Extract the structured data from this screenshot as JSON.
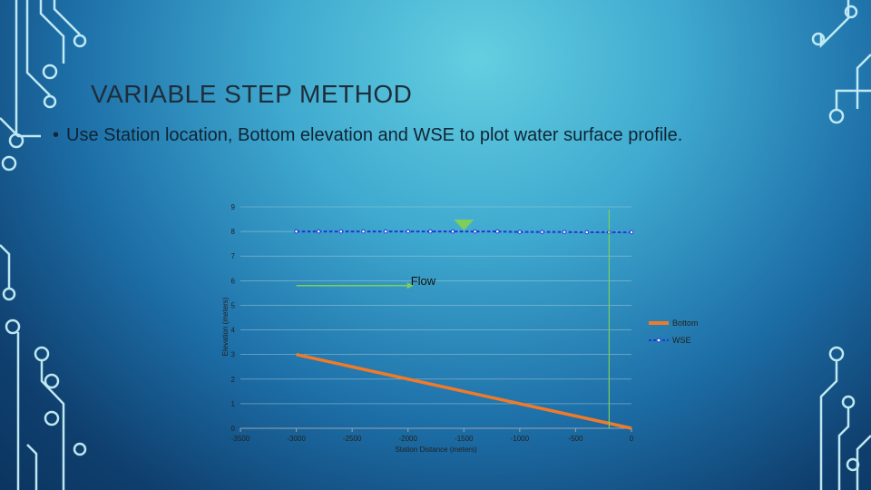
{
  "slide": {
    "title": "VARIABLE STEP METHOD",
    "bullet_symbol": "•",
    "bullet": "Use Station location, Bottom elevation and WSE to plot water surface profile."
  },
  "colors": {
    "circuit": "#c8f0f8",
    "bottom_series": "#f07a2a",
    "wse_series": "#1a3ad6",
    "flow_line": "#7ccf5a",
    "triangle": "#7ccf5a",
    "axis": "#9aa6b0"
  },
  "chart_data": {
    "type": "line",
    "title": "",
    "xlabel": "Station Distance (meters)",
    "ylabel": "Elevation (meters)",
    "xlim": [
      -3500,
      0
    ],
    "ylim": [
      0,
      9
    ],
    "x_ticks": [
      "-3500",
      "-3000",
      "-2500",
      "-2000",
      "-1500",
      "-1000",
      "-500",
      "0"
    ],
    "x_tick_values": [
      -3500,
      -3000,
      -2500,
      -2000,
      -1500,
      -1000,
      -500,
      0
    ],
    "y_ticks": [
      "0",
      "1",
      "2",
      "3",
      "4",
      "5",
      "6",
      "7",
      "8",
      "9"
    ],
    "y_tick_values": [
      0,
      1,
      2,
      3,
      4,
      5,
      6,
      7,
      8,
      9
    ],
    "series": [
      {
        "name": "Bottom",
        "x": [
          -3000,
          0
        ],
        "y": [
          3,
          0
        ]
      },
      {
        "name": "WSE",
        "x": [
          -3000,
          -2800,
          -2600,
          -2400,
          -2200,
          -2000,
          -1800,
          -1600,
          -1400,
          -1200,
          -1000,
          -800,
          -600,
          -400,
          -200,
          0
        ],
        "y": [
          8.0,
          8.0,
          8.0,
          8.0,
          8.0,
          8.0,
          8.0,
          8.0,
          8.0,
          8.0,
          7.98,
          7.98,
          7.98,
          7.97,
          7.97,
          7.97
        ]
      }
    ],
    "legend": {
      "placement": "right",
      "entries": [
        "Bottom",
        "WSE"
      ]
    },
    "annotations": {
      "flow_label": "Flow",
      "flow_arrow": {
        "x": [
          -3000,
          -2000
        ],
        "y": [
          5.8,
          5.8
        ]
      },
      "water_surface_marker": {
        "x": -1500,
        "y": 8.3
      },
      "vertical_line": {
        "x": -200,
        "y": [
          0,
          8.9
        ]
      }
    },
    "grid": true
  }
}
